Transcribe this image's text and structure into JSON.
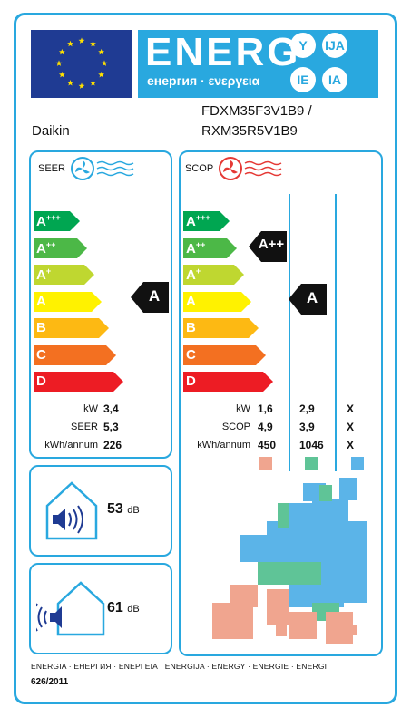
{
  "header": {
    "energy_word": "ENERG",
    "energy_sub": "енергия · ενεργεια",
    "lang_codes": [
      "Y",
      "IJA",
      "IE",
      "IA"
    ]
  },
  "product": {
    "brand": "Daikin",
    "model_indoor": "FDXM35F3V1B9 /",
    "model_outdoor": "RXM35R5V1B9"
  },
  "cooling": {
    "title": "SEER",
    "classes": [
      "A+++",
      "A++",
      "A+",
      "A",
      "B",
      "C",
      "D"
    ],
    "rating": "A",
    "rows": [
      {
        "label": "kW",
        "value": "3,4"
      },
      {
        "label": "SEER",
        "value": "5,3"
      },
      {
        "label": "kWh/annum",
        "value": "226"
      }
    ]
  },
  "heating": {
    "title": "SCOP",
    "classes": [
      "A+++",
      "A++",
      "A+",
      "A",
      "B",
      "C",
      "D"
    ],
    "rating_warm": "A++",
    "rating_average": "A",
    "rows": [
      {
        "label": "kW",
        "values": [
          "1,6",
          "2,9",
          "X"
        ]
      },
      {
        "label": "SCOP",
        "values": [
          "4,9",
          "3,9",
          "X"
        ]
      },
      {
        "label": "kWh/annum",
        "values": [
          "450",
          "1046",
          "X"
        ]
      }
    ],
    "zone_colors": [
      "#f0a58f",
      "#5fc497",
      "#5bb4e8"
    ]
  },
  "noise": {
    "indoor_db": "53",
    "outdoor_db": "61",
    "unit": "dB"
  },
  "class_colors": [
    "#00a651",
    "#4cb847",
    "#bfd730",
    "#fff200",
    "#fdb913",
    "#f37021",
    "#ed1c24"
  ],
  "footer": {
    "languages": "ENERGIA · ЕНЕРГИЯ · ΕΝΕΡΓΕΙΑ · ENERGIJA · ENERGY · ENERGIE · ENERGI",
    "regulation": "626/2011"
  }
}
